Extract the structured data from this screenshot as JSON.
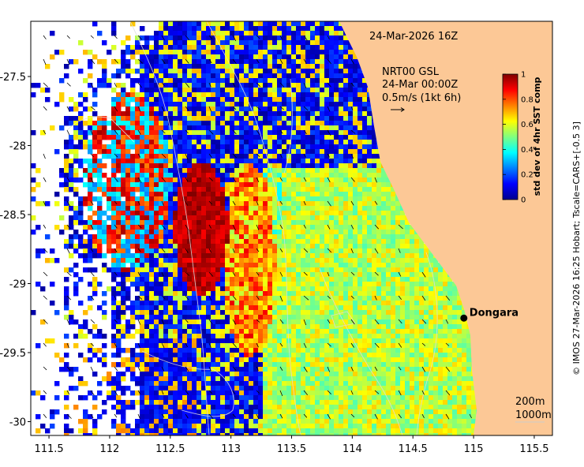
{
  "map": {
    "date_stamp": "24-Mar-2026 16Z",
    "wind_source": "NRT00 GSL",
    "wind_time": "24-Mar 00:00Z",
    "wind_scale_label": "0.5m/s (1kt 6h)",
    "isobath_labels": [
      "200m",
      "1000m"
    ],
    "place_name": "Dongara",
    "place_lon": 114.92,
    "place_lat": -29.25,
    "lon_ticks": [
      "111.5",
      "112",
      "112.5",
      "113",
      "113.5",
      "114",
      "114.5",
      "115",
      "115.5"
    ],
    "lat_ticks": [
      "-27.5",
      "-28",
      "-28.5",
      "-29",
      "-29.5",
      "-30"
    ],
    "lon_range": [
      111.35,
      115.65
    ],
    "lat_range": [
      -30.1,
      -27.1
    ],
    "credit": "© IMOS 27-Mar-2026 16:25 Hobart; Tscale=CARS+[-0.5 3]",
    "colors": {
      "land": "#fcc896",
      "no_data": "#ffffff",
      "coast_point": "#000000"
    }
  },
  "colorbar": {
    "label": "std dev of 4hr SST comp",
    "ticks": [
      "0",
      "0.2",
      "0.4",
      "0.6",
      "0.8",
      "1"
    ],
    "range": [
      0,
      1
    ],
    "colormap": "jet"
  }
}
